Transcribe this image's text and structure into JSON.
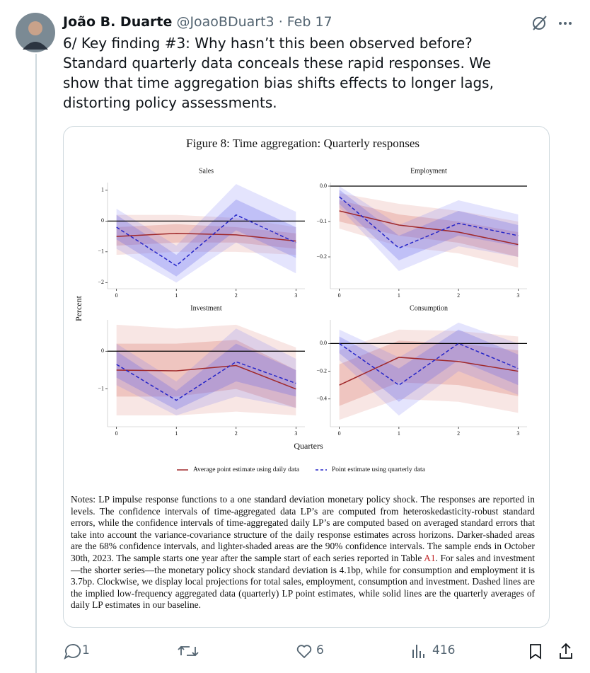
{
  "tweet": {
    "author_name": "João B. Duarte",
    "handle": "@JoaoBDuart3",
    "separator": "·",
    "date": "Feb 17",
    "text": "6/ Key finding #3: Why hasn’t this been observed before? Standard quarterly data conceals these rapid responses. We show that time aggregation bias shifts effects to longer lags, distorting policy assessments."
  },
  "figure": {
    "title": "Figure 8: Time aggregation: Quarterly responses",
    "y_label": "Percent",
    "x_label": "Quarters",
    "legend": [
      {
        "name": "Average point estimate using daily data",
        "color": "#a0282a",
        "dash": false
      },
      {
        "name": "Point estimate using quarterly data",
        "color": "#2424c8",
        "dash": true
      }
    ],
    "panels": [
      {
        "title": "Sales",
        "x": [
          0,
          1,
          2,
          3
        ],
        "xlim": [
          -0.15,
          3.15
        ],
        "xticks": [
          0,
          1,
          2,
          3
        ],
        "ylim": [
          -2.2,
          1.25
        ],
        "hline": 0,
        "yticks": [
          {
            "value": -2,
            "label": "−2"
          },
          {
            "value": -1,
            "label": "−1"
          },
          0,
          1
        ],
        "series": [
          {
            "values": [
              -0.5,
              -0.4,
              -0.45,
              -0.65
            ],
            "ci90": {
              "low": [
                -1.1,
                -1.0,
                -1.0,
                -1.1
              ],
              "high": [
                0.2,
                0.2,
                0.1,
                -0.2
              ]
            },
            "ci68": {
              "low": [
                -0.8,
                -0.7,
                -0.7,
                -0.9
              ],
              "high": [
                -0.2,
                -0.1,
                -0.2,
                -0.4
              ]
            }
          },
          {
            "values": [
              -0.2,
              -1.45,
              0.2,
              -0.7
            ],
            "ci90": {
              "low": [
                -0.9,
                -2.0,
                -0.7,
                -1.7
              ],
              "high": [
                0.4,
                -0.8,
                1.2,
                0.3
              ]
            },
            "ci68": {
              "low": [
                -0.6,
                -1.8,
                -0.3,
                -1.2
              ],
              "high": [
                0.2,
                -1.1,
                0.7,
                -0.2
              ]
            }
          }
        ]
      },
      {
        "title": "Employment",
        "x": [
          0,
          1,
          2,
          3
        ],
        "xlim": [
          -0.15,
          3.15
        ],
        "xticks": [
          0,
          1,
          2,
          3
        ],
        "ylim": [
          -0.29,
          0.01
        ],
        "hline": 0,
        "yticks": [
          {
            "value": -0.2,
            "label": "−0.2"
          },
          {
            "value": -0.1,
            "label": "−0.1"
          },
          {
            "value": 0,
            "label": "0.0"
          }
        ],
        "series": [
          {
            "values": [
              -0.07,
              -0.11,
              -0.13,
              -0.165
            ],
            "ci90": {
              "low": [
                -0.12,
                -0.17,
                -0.19,
                -0.23
              ],
              "high": [
                -0.02,
                -0.05,
                -0.07,
                -0.1
              ]
            },
            "ci68": {
              "low": [
                -0.1,
                -0.14,
                -0.16,
                -0.2
              ],
              "high": [
                -0.04,
                -0.08,
                -0.1,
                -0.13
              ]
            }
          },
          {
            "values": [
              -0.03,
              -0.175,
              -0.105,
              -0.14
            ],
            "ci90": {
              "low": [
                -0.06,
                -0.24,
                -0.17,
                -0.2
              ],
              "high": [
                0.0,
                -0.11,
                -0.04,
                -0.08
              ]
            },
            "ci68": {
              "low": [
                -0.05,
                -0.21,
                -0.14,
                -0.17
              ],
              "high": [
                -0.01,
                -0.14,
                -0.07,
                -0.11
              ]
            }
          }
        ]
      },
      {
        "title": "Investment",
        "x": [
          0,
          1,
          2,
          3
        ],
        "xlim": [
          -0.15,
          3.15
        ],
        "xticks": [
          0,
          1,
          2,
          3
        ],
        "ylim": [
          -2.0,
          0.83
        ],
        "hline": 0,
        "yticks": [
          {
            "value": -1,
            "label": "−1"
          },
          0
        ],
        "series": [
          {
            "values": [
              -0.5,
              -0.52,
              -0.38,
              -1.0
            ],
            "ci90": {
              "low": [
                -1.7,
                -1.7,
                -1.6,
                -1.7
              ],
              "high": [
                0.7,
                0.6,
                0.7,
                0.1
              ]
            },
            "ci68": {
              "low": [
                -1.2,
                -1.2,
                -1.0,
                -1.5
              ],
              "high": [
                0.2,
                0.2,
                0.3,
                -0.5
              ]
            }
          },
          {
            "values": [
              -0.35,
              -1.3,
              -0.28,
              -0.85
            ],
            "ci90": {
              "low": [
                -0.9,
                -1.7,
                -1.2,
                -1.5
              ],
              "high": [
                0.2,
                -0.8,
                0.6,
                -0.2
              ]
            },
            "ci68": {
              "low": [
                -0.7,
                -1.55,
                -0.8,
                -1.2
              ],
              "high": [
                0.0,
                -1.05,
                0.2,
                -0.5
              ]
            }
          }
        ]
      },
      {
        "title": "Consumption",
        "x": [
          0,
          1,
          2,
          3
        ],
        "xlim": [
          -0.15,
          3.15
        ],
        "xticks": [
          0,
          1,
          2,
          3
        ],
        "ylim": [
          -0.6,
          0.17
        ],
        "hline": 0,
        "yticks": [
          {
            "value": -0.4,
            "label": "−0.4"
          },
          {
            "value": -0.2,
            "label": "−0.2"
          },
          {
            "value": 0,
            "label": "0.0"
          }
        ],
        "series": [
          {
            "values": [
              -0.3,
              -0.1,
              -0.13,
              -0.2
            ],
            "ci90": {
              "low": [
                -0.55,
                -0.4,
                -0.42,
                -0.5
              ],
              "high": [
                -0.05,
                0.1,
                0.09,
                0.05
              ]
            },
            "ci68": {
              "low": [
                -0.45,
                -0.28,
                -0.3,
                -0.38
              ],
              "high": [
                -0.15,
                0.02,
                0.0,
                -0.05
              ]
            }
          },
          {
            "values": [
              0.0,
              -0.3,
              0.0,
              -0.18
            ],
            "ci90": {
              "low": [
                -0.12,
                -0.52,
                -0.2,
                -0.37
              ],
              "high": [
                0.1,
                -0.1,
                0.15,
                0.0
              ]
            },
            "ci68": {
              "low": [
                -0.07,
                -0.42,
                -0.12,
                -0.3
              ],
              "high": [
                0.05,
                -0.18,
                0.1,
                -0.08
              ]
            }
          }
        ]
      }
    ],
    "notes": [
      "Notes: LP impulse response functions to a one standard deviation monetary policy shock. The responses are reported in levels. The confidence intervals of time-aggregated data LP’s are computed from heteroskedasticity-robust standard errors, while the confidence intervals of time-aggregated daily LP’s are computed based on averaged standard errors that take into account the variance-covariance structure of the daily response estimates across horizons. Darker-shaded areas are the 68% confidence intervals, and lighter-shaded areas are the 90% confidence intervals. The sample ends in October 30th, 2023. The sample starts one year after the sample start of each series reported in Table ",
      "A1",
      ". For sales and investment—the shorter series—the monetary policy shock standard deviation is 4.1bp, while for consumption and employment it is 3.7bp. Clockwise, we display local projections for total sales, employment, consumption and investment. Dashed lines are the implied low-frequency aggregated data (quarterly) LP point estimates, while solid lines are the quarterly averages of daily LP estimates in our baseline."
    ]
  },
  "actions": {
    "replies": 1,
    "likes": 6,
    "views": 416
  }
}
